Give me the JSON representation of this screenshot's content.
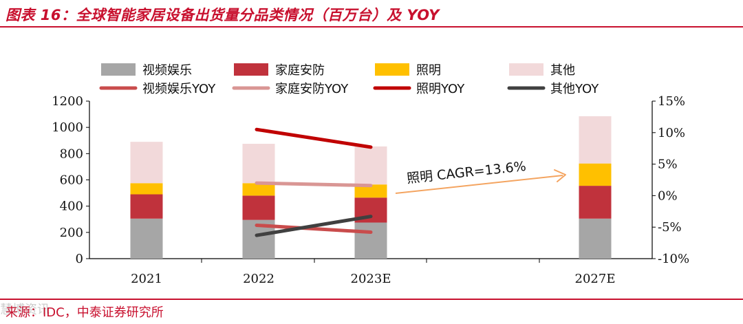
{
  "header": {
    "title": "图表 16：全球智能家居设备出货量分品类情况（百万台）及 YOY"
  },
  "footer": {
    "source": "来源：IDC，中泰证券研究所",
    "watermark": "慧博资讯"
  },
  "chart_data": {
    "type": "bar",
    "stacked": true,
    "categories": [
      "2021",
      "2022",
      "2023E",
      "2027E"
    ],
    "series": [
      {
        "name": "视频娱乐",
        "values": [
          305,
          295,
          275,
          305
        ],
        "color": "#a6a6a6"
      },
      {
        "name": "家庭安防",
        "values": [
          185,
          185,
          190,
          250
        ],
        "color": "#c0323c"
      },
      {
        "name": "照明",
        "values": [
          85,
          95,
          100,
          170
        ],
        "color": "#ffc000"
      },
      {
        "name": "其他",
        "values": [
          315,
          300,
          290,
          360
        ],
        "color": "#f2d9da"
      }
    ],
    "line_series": [
      {
        "name": "视频娱乐YOY",
        "x": [
          "2022",
          "2023E"
        ],
        "values": [
          -4.7,
          -5.8
        ],
        "color": "#c94c4c",
        "axis": "right"
      },
      {
        "name": "家庭安防YOY",
        "x": [
          "2022",
          "2023E"
        ],
        "values": [
          2.0,
          1.6
        ],
        "color": "#d99694",
        "axis": "right"
      },
      {
        "name": "照明YOY",
        "x": [
          "2022",
          "2023E"
        ],
        "values": [
          10.5,
          7.7
        ],
        "color": "#c00000",
        "axis": "right"
      },
      {
        "name": "其他YOY",
        "x": [
          "2022",
          "2023E"
        ],
        "values": [
          -6.3,
          -3.3
        ],
        "color": "#404040",
        "axis": "right"
      }
    ],
    "ylim": [
      0,
      1200
    ],
    "yticks": [
      "0",
      "200",
      "400",
      "600",
      "800",
      "1000",
      "1200"
    ],
    "y2lim": [
      -10,
      15
    ],
    "y2ticks": [
      "-10%",
      "-5%",
      "0%",
      "5%",
      "10%",
      "15%"
    ],
    "legend_position": "top",
    "grid": false,
    "annotation": {
      "text": "照明 CAGR=13.6%",
      "arrow_color": "#f4a460"
    }
  }
}
